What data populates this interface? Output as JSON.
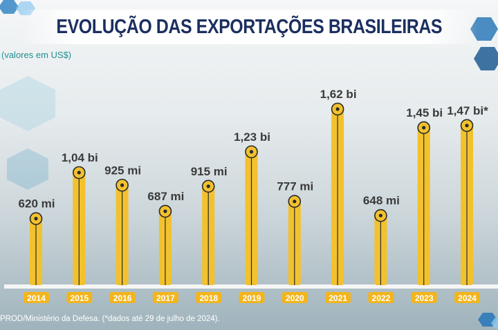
{
  "title": "EVOLUÇÃO DAS EXPORTAÇÕES BRASILEIRAS",
  "subtitle": "(valores em US$)",
  "source": "PROD/Ministério da Defesa. (*dados até 29 de julho de 2024).",
  "colors": {
    "bar": "#f2c12e",
    "bar_edge": "#d9a40f",
    "label_bg": "#f2b51c",
    "title": "#1b2f5f",
    "subtitle": "#1f8f92",
    "axis": "#f5f5f5"
  },
  "chart_data": {
    "type": "bar",
    "title": "EVOLUÇÃO DAS EXPORTAÇÕES BRASILEIRAS",
    "ylabel": "(valores em US$)",
    "unit": "US$ milhões",
    "categories": [
      "2014",
      "2015",
      "2016",
      "2017",
      "2018",
      "2019",
      "2020",
      "2021",
      "2022",
      "2023",
      "2024"
    ],
    "values": [
      620,
      1040,
      925,
      687,
      915,
      1230,
      777,
      1620,
      648,
      1450,
      1470
    ],
    "data_labels": [
      "620 mi",
      "1,04 bi",
      "925 mi",
      "687 mi",
      "915 mi",
      "1,23 bi",
      "777 mi",
      "1,62 bi",
      "648 mi",
      "1,45 bi",
      "1,47 bi*"
    ],
    "ylim": [
      0,
      1700
    ],
    "grid": false
  }
}
